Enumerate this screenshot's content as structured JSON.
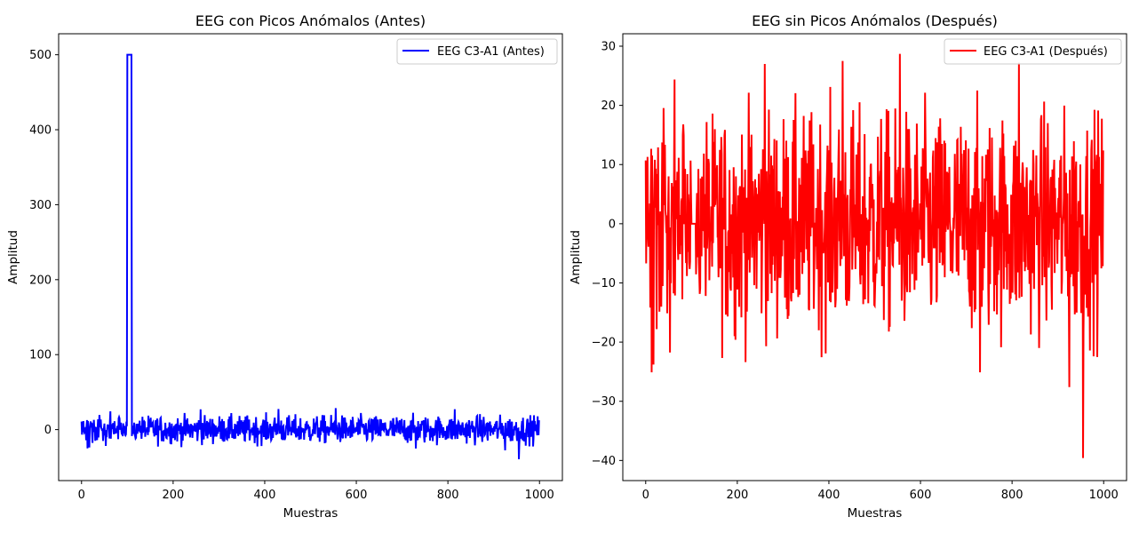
{
  "chart_data": [
    {
      "type": "line",
      "title": "EEG con Picos Anómalos (Antes)",
      "xlabel": "Muestras",
      "ylabel": "Amplitud",
      "xlim": [
        -50,
        1050
      ],
      "ylim": [
        -68,
        528
      ],
      "xticks": [
        0,
        200,
        400,
        600,
        800,
        1000
      ],
      "yticks": [
        0,
        100,
        200,
        300,
        400,
        500
      ],
      "xtick_labels": [
        "0",
        "200",
        "400",
        "600",
        "800",
        "1000"
      ],
      "ytick_labels": [
        "0",
        "100",
        "200",
        "300",
        "400",
        "500"
      ],
      "legend_position": "top-right",
      "series": [
        {
          "name": "EEG C3-A1 (Antes)",
          "color": "#0000ff",
          "n_samples": 1000,
          "spike": {
            "start": 100,
            "end": 110,
            "value": 500
          },
          "noise_min": -40,
          "noise_max": 29
        }
      ]
    },
    {
      "type": "line",
      "title": "EEG sin Picos Anómalos (Después)",
      "xlabel": "Muestras",
      "ylabel": "Amplitud",
      "xlim": [
        -50,
        1050
      ],
      "ylim": [
        -43.4,
        32.1
      ],
      "xticks": [
        0,
        200,
        400,
        600,
        800,
        1000
      ],
      "yticks": [
        -40,
        -30,
        -20,
        -10,
        0,
        10,
        20,
        30
      ],
      "xtick_labels": [
        "0",
        "200",
        "400",
        "600",
        "800",
        "1000"
      ],
      "ytick_labels": [
        "−40",
        "−30",
        "−20",
        "−10",
        "0",
        "10",
        "20",
        "30"
      ],
      "legend_position": "top-right",
      "series": [
        {
          "name": "EEG C3-A1 (Después)",
          "color": "#ff0000",
          "n_samples": 1000,
          "spike": {
            "start": 100,
            "end": 110,
            "value": 0
          },
          "noise_min": -40,
          "noise_max": 29
        }
      ]
    }
  ]
}
